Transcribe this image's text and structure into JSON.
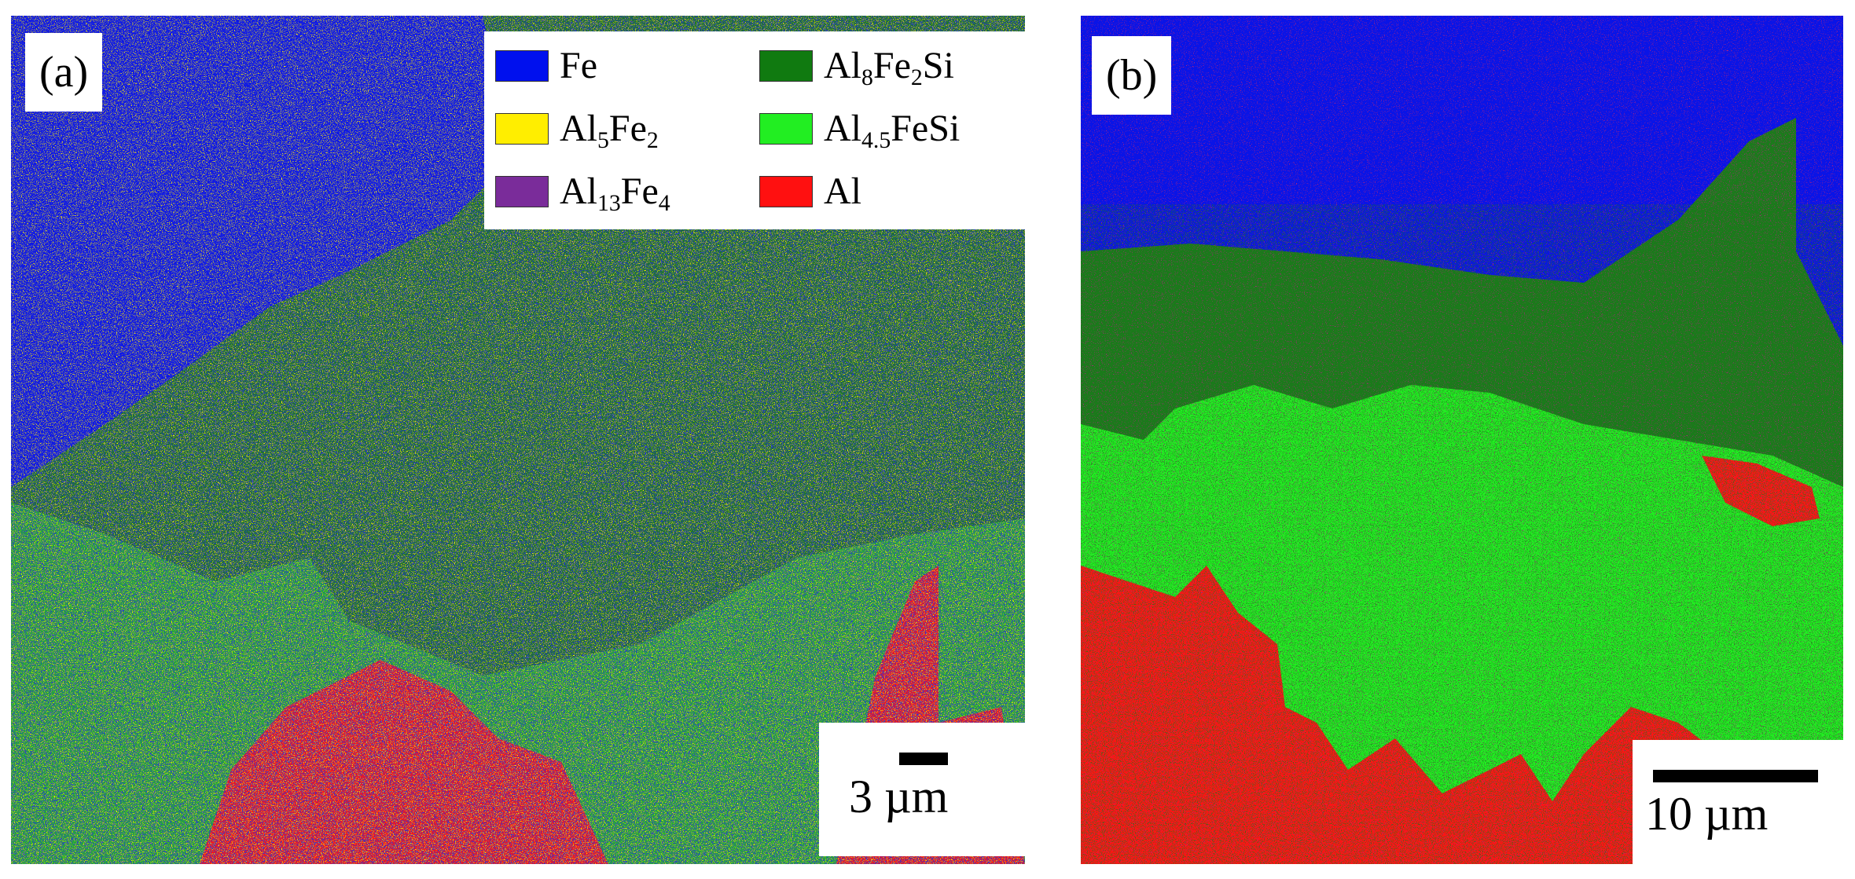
{
  "figure": {
    "panel_a": {
      "label": "(a)",
      "scale_label": "3 µm"
    },
    "panel_b": {
      "label": "(b)",
      "scale_label": "10 µm"
    },
    "legend": [
      {
        "base": "Fe",
        "sub1": "",
        "mid": "",
        "sub2": "",
        "tail": "",
        "color": "#0010ee"
      },
      {
        "base": "Al",
        "sub1": "5",
        "mid": "Fe",
        "sub2": "2",
        "tail": "",
        "color": "#ffee00"
      },
      {
        "base": "Al",
        "sub1": "13",
        "mid": "Fe",
        "sub2": "4",
        "tail": "",
        "color": "#7a2c9a"
      },
      {
        "base": "Al",
        "sub1": "8",
        "mid": "Fe",
        "sub2": "2",
        "tail": "Si",
        "color": "#107a10"
      },
      {
        "base": "Al",
        "sub1": "4.5",
        "mid": "FeSi",
        "sub2": "",
        "tail": "",
        "color": "#22ee22"
      },
      {
        "base": "Al",
        "sub1": "",
        "mid": "",
        "sub2": "",
        "tail": "",
        "color": "#ff1010"
      }
    ]
  }
}
